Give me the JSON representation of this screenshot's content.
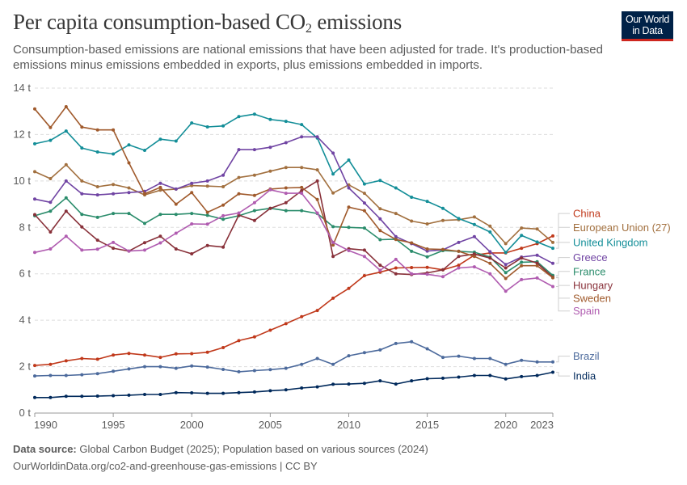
{
  "header": {
    "title_main": "Per capita consumption-based CO",
    "title_sub": "2",
    "title_end": " emissions",
    "subtitle": "Consumption-based emissions are national emissions that have been adjusted for trade. It's production-based emissions minus emissions embedded in exports, plus emissions embedded in imports.",
    "logo_line1": "Our World",
    "logo_line2": "in Data"
  },
  "footer": {
    "source_label": "Data source:",
    "source_text": " Global Carbon Budget (2025); Population based on various sources (2024)",
    "url_text": "OurWorldinData.org/co2-and-greenhouse-gas-emissions | CC BY"
  },
  "chart_data": {
    "type": "line",
    "title": "Per capita consumption-based CO2 emissions",
    "xlabel": "",
    "ylabel": "",
    "unit": "t",
    "x": [
      1990,
      1991,
      1992,
      1993,
      1994,
      1995,
      1996,
      1997,
      1998,
      1999,
      2000,
      2001,
      2002,
      2003,
      2004,
      2005,
      2006,
      2007,
      2008,
      2009,
      2010,
      2011,
      2012,
      2013,
      2014,
      2015,
      2016,
      2017,
      2018,
      2019,
      2020,
      2021,
      2022,
      2023
    ],
    "xlim": [
      1990,
      2023
    ],
    "ylim": [
      0,
      14
    ],
    "x_ticks": [
      1990,
      1995,
      2000,
      2005,
      2010,
      2015,
      2020,
      2023
    ],
    "y_ticks": [
      {
        "value": 0,
        "label": "0 t"
      },
      {
        "value": 2,
        "label": "2 t"
      },
      {
        "value": 4,
        "label": "4 t"
      },
      {
        "value": 6,
        "label": "6 t"
      },
      {
        "value": 8,
        "label": "8 t"
      },
      {
        "value": 10,
        "label": "10 t"
      },
      {
        "value": 12,
        "label": "12 t"
      },
      {
        "value": 14,
        "label": "14 t"
      }
    ],
    "grid": "horizontal-dashed",
    "legend": "right",
    "series": [
      {
        "name": "China",
        "color": "#c0391b",
        "label_value": 8.6,
        "values": [
          2.05,
          2.1,
          2.25,
          2.35,
          2.32,
          2.5,
          2.57,
          2.5,
          2.4,
          2.55,
          2.56,
          2.62,
          2.82,
          3.12,
          3.28,
          3.57,
          3.85,
          4.15,
          4.42,
          4.95,
          5.37,
          5.92,
          6.07,
          6.25,
          6.27,
          6.28,
          6.17,
          6.37,
          6.8,
          6.9,
          6.9,
          7.1,
          7.3,
          7.63
        ]
      },
      {
        "name": "European Union (27)",
        "color": "#a2703f",
        "label_value": 8.0,
        "values": [
          10.4,
          10.1,
          10.7,
          10.0,
          9.75,
          9.85,
          9.7,
          9.4,
          9.6,
          9.65,
          9.8,
          9.78,
          9.75,
          10.15,
          10.25,
          10.42,
          10.58,
          10.58,
          10.48,
          9.48,
          9.83,
          9.47,
          8.8,
          8.6,
          8.27,
          8.15,
          8.3,
          8.33,
          8.45,
          8.05,
          7.3,
          7.97,
          7.93,
          7.35
        ]
      },
      {
        "name": "United Kingdom",
        "color": "#138e98",
        "label_value": 7.35,
        "values": [
          11.6,
          11.75,
          12.15,
          11.42,
          11.25,
          11.16,
          11.55,
          11.32,
          11.8,
          11.72,
          12.5,
          12.33,
          12.37,
          12.77,
          12.88,
          12.65,
          12.57,
          12.43,
          11.85,
          10.3,
          10.9,
          9.87,
          10.02,
          9.7,
          9.3,
          9.12,
          8.82,
          8.38,
          8.12,
          7.8,
          6.92,
          7.65,
          7.37,
          7.1
        ]
      },
      {
        "name": "Greece",
        "color": "#7044a3",
        "label_value": 6.7,
        "values": [
          9.22,
          9.08,
          10.0,
          9.45,
          9.4,
          9.45,
          9.5,
          9.55,
          9.9,
          9.65,
          9.9,
          10.0,
          10.25,
          11.35,
          11.35,
          11.45,
          11.65,
          11.9,
          11.9,
          11.2,
          9.7,
          9.05,
          8.37,
          7.6,
          7.3,
          6.98,
          7.03,
          7.35,
          7.6,
          6.95,
          6.4,
          6.72,
          6.8,
          6.45
        ]
      },
      {
        "name": "France",
        "color": "#2a8c6b",
        "label_value": 6.1,
        "values": [
          8.5,
          8.7,
          9.27,
          8.56,
          8.43,
          8.6,
          8.6,
          8.17,
          8.56,
          8.56,
          8.6,
          8.52,
          8.35,
          8.5,
          8.72,
          8.82,
          8.72,
          8.72,
          8.6,
          8.03,
          8.0,
          7.97,
          7.47,
          7.49,
          6.97,
          6.73,
          7.0,
          6.97,
          6.93,
          6.72,
          6.05,
          6.5,
          6.52,
          5.93
        ]
      },
      {
        "name": "Hungary",
        "color": "#883039",
        "label_value": 5.5,
        "values": [
          8.55,
          7.8,
          8.7,
          8.02,
          7.45,
          7.1,
          6.98,
          7.34,
          7.62,
          7.07,
          6.86,
          7.22,
          7.15,
          8.53,
          8.3,
          8.82,
          9.06,
          9.58,
          10.0,
          6.75,
          7.08,
          7.02,
          6.37,
          6.0,
          5.97,
          6.04,
          6.17,
          6.75,
          6.85,
          6.68,
          6.25,
          6.68,
          6.46,
          5.85
        ]
      },
      {
        "name": "Sweden",
        "color": "#a05a2c",
        "label_value": 4.95,
        "values": [
          13.1,
          12.3,
          13.2,
          12.32,
          12.2,
          12.2,
          10.78,
          9.45,
          9.72,
          9.0,
          9.5,
          8.65,
          8.96,
          9.45,
          9.38,
          9.65,
          9.7,
          9.72,
          9.2,
          7.24,
          8.87,
          8.72,
          7.86,
          7.48,
          7.33,
          7.07,
          7.05,
          6.97,
          6.75,
          6.45,
          5.8,
          6.35,
          6.35,
          5.83
        ]
      },
      {
        "name": "Spain",
        "color": "#b05cb0",
        "label_value": 4.4,
        "values": [
          6.92,
          7.07,
          7.62,
          7.02,
          7.06,
          7.35,
          6.98,
          7.02,
          7.33,
          7.75,
          8.15,
          8.14,
          8.5,
          8.62,
          9.06,
          9.62,
          9.47,
          9.47,
          8.62,
          7.35,
          7.0,
          6.75,
          6.15,
          6.62,
          6.0,
          5.98,
          5.88,
          6.25,
          6.3,
          6.0,
          5.25,
          5.75,
          5.82,
          5.45
        ]
      },
      {
        "name": "Brazil",
        "color": "#4c6a9c",
        "label_value": 2.45,
        "values": [
          1.6,
          1.62,
          1.62,
          1.65,
          1.7,
          1.8,
          1.9,
          2.0,
          2.0,
          1.93,
          2.03,
          1.98,
          1.88,
          1.78,
          1.83,
          1.87,
          1.93,
          2.1,
          2.35,
          2.1,
          2.47,
          2.6,
          2.72,
          3.0,
          3.07,
          2.77,
          2.4,
          2.45,
          2.35,
          2.35,
          2.1,
          2.27,
          2.2,
          2.2
        ]
      },
      {
        "name": "India",
        "color": "#00295b",
        "label_value": 1.6,
        "values": [
          0.67,
          0.67,
          0.72,
          0.72,
          0.73,
          0.75,
          0.77,
          0.8,
          0.8,
          0.88,
          0.87,
          0.85,
          0.85,
          0.88,
          0.91,
          0.96,
          1.0,
          1.08,
          1.13,
          1.24,
          1.25,
          1.28,
          1.39,
          1.25,
          1.39,
          1.48,
          1.5,
          1.55,
          1.62,
          1.62,
          1.47,
          1.57,
          1.62,
          1.76
        ]
      }
    ]
  }
}
